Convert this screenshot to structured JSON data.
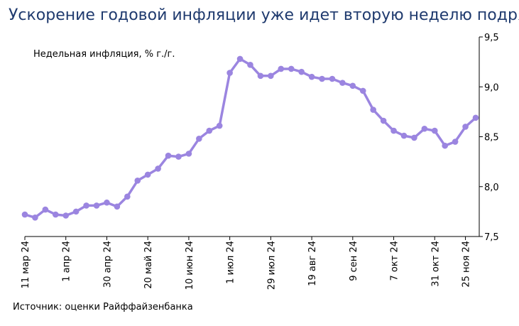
{
  "title": "Ускорение годовой инфляции уже идет вторую неделю подряд",
  "source": "Источник: оценки Райффайзенбанка",
  "colors": {
    "title": "#1f3a6e",
    "series": "#9b85e0",
    "axis": "#000000"
  },
  "chart_data": {
    "type": "line",
    "title": "Ускорение годовой инфляции уже идет вторую неделю подряд",
    "series_label": "Недельная инфляция, % г./г.",
    "ylim": [
      7.5,
      9.5
    ],
    "yticks": [
      "7,5",
      "8,0",
      "8,5",
      "9,0",
      "9,5"
    ],
    "ytick_values": [
      7.5,
      8.0,
      8.5,
      9.0,
      9.5
    ],
    "xtick_labels": [
      "11 мар 24",
      "1 апр 24",
      "30 апр 24",
      "20 май 24",
      "10 июн 24",
      "1 июл 24",
      "29 июл 24",
      "19 авг 24",
      "9 сен 24",
      "7 окт 24",
      "31 окт 24",
      "25 ноя 24"
    ],
    "xtick_index": [
      0,
      4,
      8,
      12,
      16,
      20,
      24,
      28,
      32,
      36,
      40,
      43
    ],
    "grid": false,
    "series": [
      {
        "name": "Недельная инфляция, % г./г.",
        "values": [
          7.72,
          7.69,
          7.77,
          7.72,
          7.71,
          7.75,
          7.81,
          7.81,
          7.84,
          7.8,
          7.9,
          8.06,
          8.12,
          8.18,
          8.31,
          8.3,
          8.33,
          8.48,
          8.56,
          8.61,
          9.14,
          9.28,
          9.22,
          9.11,
          9.11,
          9.18,
          9.18,
          9.15,
          9.1,
          9.08,
          9.08,
          9.04,
          9.01,
          8.96,
          8.77,
          8.66,
          8.56,
          8.51,
          8.49,
          8.58,
          8.56,
          8.41,
          8.45,
          8.6,
          8.69
        ]
      }
    ]
  }
}
